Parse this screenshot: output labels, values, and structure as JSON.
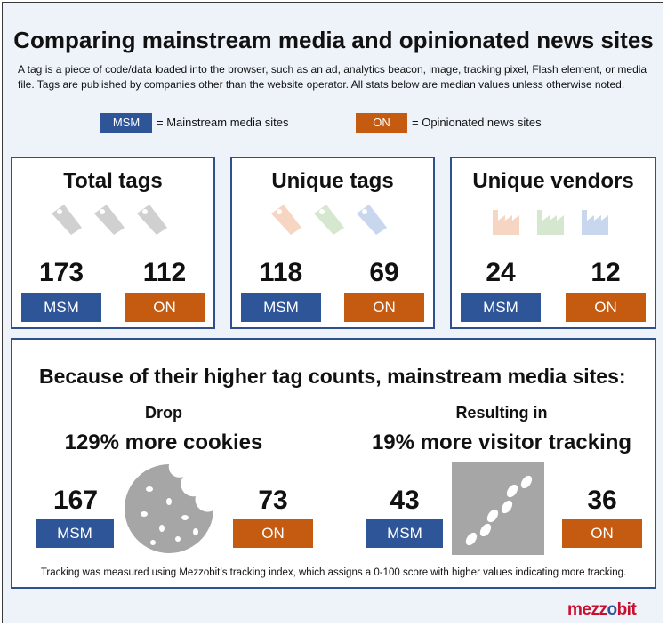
{
  "title": "Comparing mainstream media and opinionated news sites",
  "subtitle": "A tag is a piece of code/data loaded into the browser, such as an ad, analytics beacon, image, tracking pixel, Flash element, or media file. Tags are published by companies other than the website operator. All stats below are median values unless otherwise noted.",
  "legend": {
    "msm_badge": "MSM",
    "msm_text": "= Mainstream media sites",
    "on_badge": "ON",
    "on_text": "= Opinionated news sites"
  },
  "colors": {
    "msm": "#2e5597",
    "on": "#c55a11"
  },
  "chart_data": {
    "type": "table",
    "categories": [
      "MSM",
      "ON"
    ],
    "panels": [
      {
        "title": "Total tags",
        "icon": "tag-icon",
        "values": [
          173,
          112
        ],
        "labels": [
          "MSM",
          "ON"
        ]
      },
      {
        "title": "Unique tags",
        "icon": "tag-icon",
        "values": [
          118,
          69
        ],
        "labels": [
          "MSM",
          "ON"
        ]
      },
      {
        "title": "Unique vendors",
        "icon": "factory-icon",
        "values": [
          24,
          12
        ],
        "labels": [
          "MSM",
          "ON"
        ]
      }
    ],
    "bottom": {
      "heading": "Because of their higher tag counts, mainstream media sites:",
      "cookies": {
        "label": "Drop",
        "pct": "129% more cookies",
        "icon": "cookie-icon",
        "values": [
          167,
          73
        ],
        "labels": [
          "MSM",
          "ON"
        ]
      },
      "tracking": {
        "label": "Resulting in",
        "pct": "19% more visitor tracking",
        "icon": "footprints-icon",
        "values": [
          43,
          36
        ],
        "labels": [
          "MSM",
          "ON"
        ]
      },
      "footnote": "Tracking was measured using Mezzobit’s tracking index, which assigns a 0-100 score with higher values indicating more tracking."
    }
  },
  "logo": {
    "part1": "mezz",
    "part2": "o",
    "part3": "bit"
  }
}
